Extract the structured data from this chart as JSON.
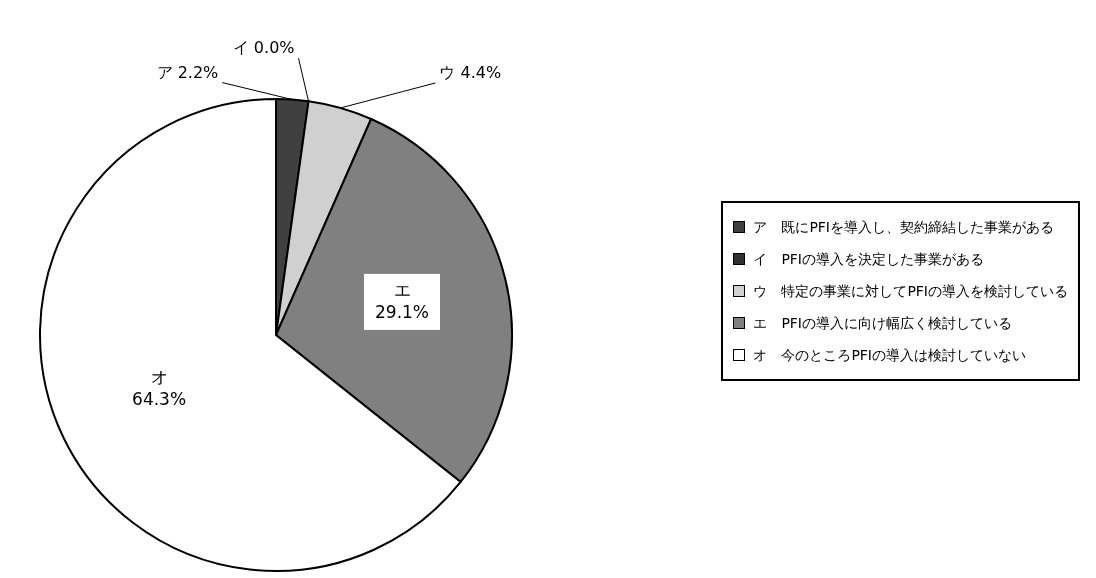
{
  "chart_data": {
    "type": "pie",
    "categories": [
      "ア　既にPFIを導入し、契約締結した事業がある",
      "イ　PFIの導入を決定した事業がある",
      "ウ　特定の事業に対してPFIの導入を検討している",
      "エ　PFIの導入に向け幅広く検討している",
      "オ　今のところPFIの導入は検討していない"
    ],
    "values": [
      2.2,
      0.0,
      4.4,
      29.1,
      64.3
    ],
    "colors": [
      "#404040",
      "#303030",
      "#d0d0d0",
      "#808080",
      "#ffffff"
    ],
    "value_labels": [
      "ア 2.2%",
      "イ 0.0%",
      "ウ 4.4%",
      "エ 29.1%",
      "オ 64.3%"
    ],
    "legend": "right"
  }
}
